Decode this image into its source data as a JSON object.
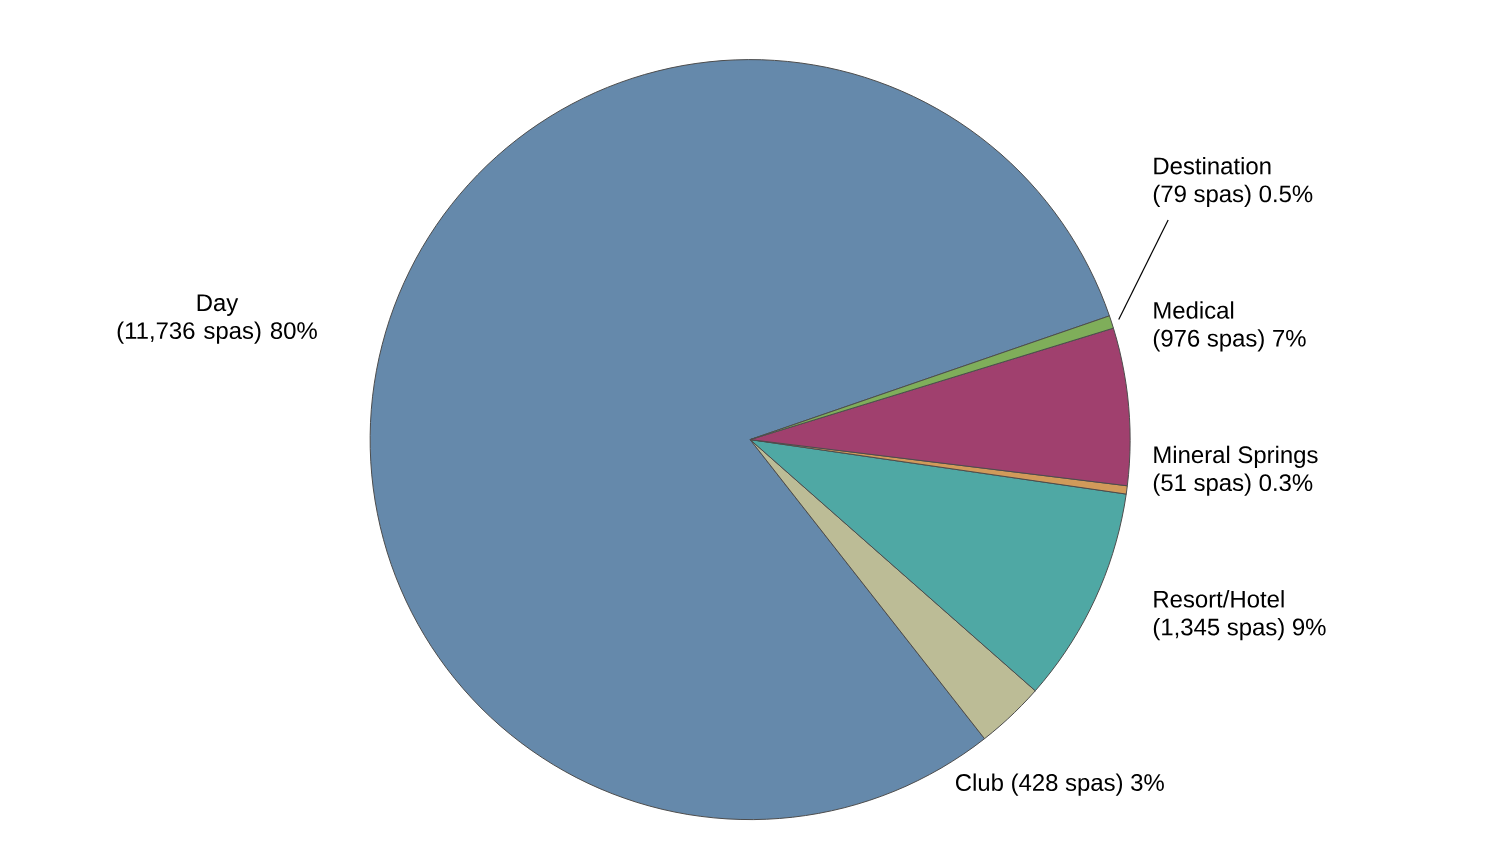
{
  "chart_data": {
    "type": "pie",
    "categories": [
      "Day",
      "Club",
      "Resort/Hotel",
      "Mineral Springs",
      "Medical",
      "Destination"
    ],
    "values": [
      11736,
      428,
      1345,
      51,
      976,
      79
    ],
    "colors": [
      "#6589ab",
      "#bcbc96",
      "#4fa8a4",
      "#d19a5a",
      "#a0406e",
      "#7fae5a"
    ],
    "value_labels": [
      "(11,736 spas) 80%",
      "(428 spas) 3%",
      "(1,345 spas) 9%",
      "(51 spas) 0.3%",
      "(976 spas) 7%",
      "(79 spas) 0.5%"
    ]
  }
}
